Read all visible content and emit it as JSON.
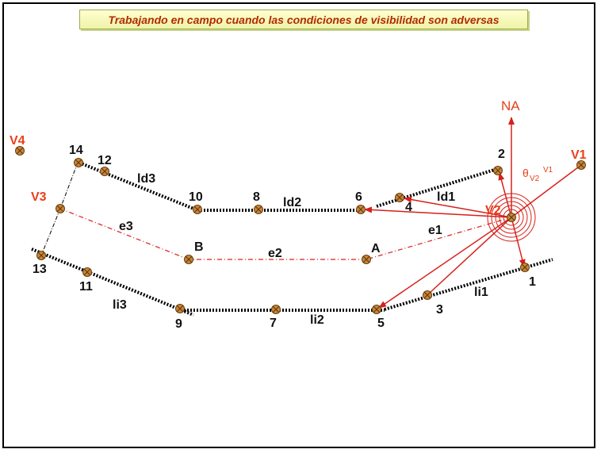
{
  "title": "Trabajando en campo cuando las condiciones de visibilidad son adversas",
  "stations": {
    "v1": "V1",
    "v2": "V2",
    "v3": "V3",
    "v4": "V4"
  },
  "north": "NA",
  "angle": {
    "symbol": "θ",
    "sub": "V2",
    "sup": "V1"
  },
  "points": [
    "1",
    "2",
    "3",
    "4",
    "5",
    "6",
    "7",
    "8",
    "9",
    "10",
    "11",
    "12",
    "13",
    "14"
  ],
  "refs": {
    "a": "A",
    "b": "B"
  },
  "segments": {
    "ld1": "ld1",
    "ld2": "ld2",
    "ld3": "ld3",
    "li1": "li1",
    "li2": "li2",
    "li3": "li3",
    "e1": "e1",
    "e2": "e2",
    "e3": "e3"
  },
  "colors": {
    "title_text": "#b22a00",
    "accent": "#e8401a",
    "marker_fill": "#c8863a"
  }
}
